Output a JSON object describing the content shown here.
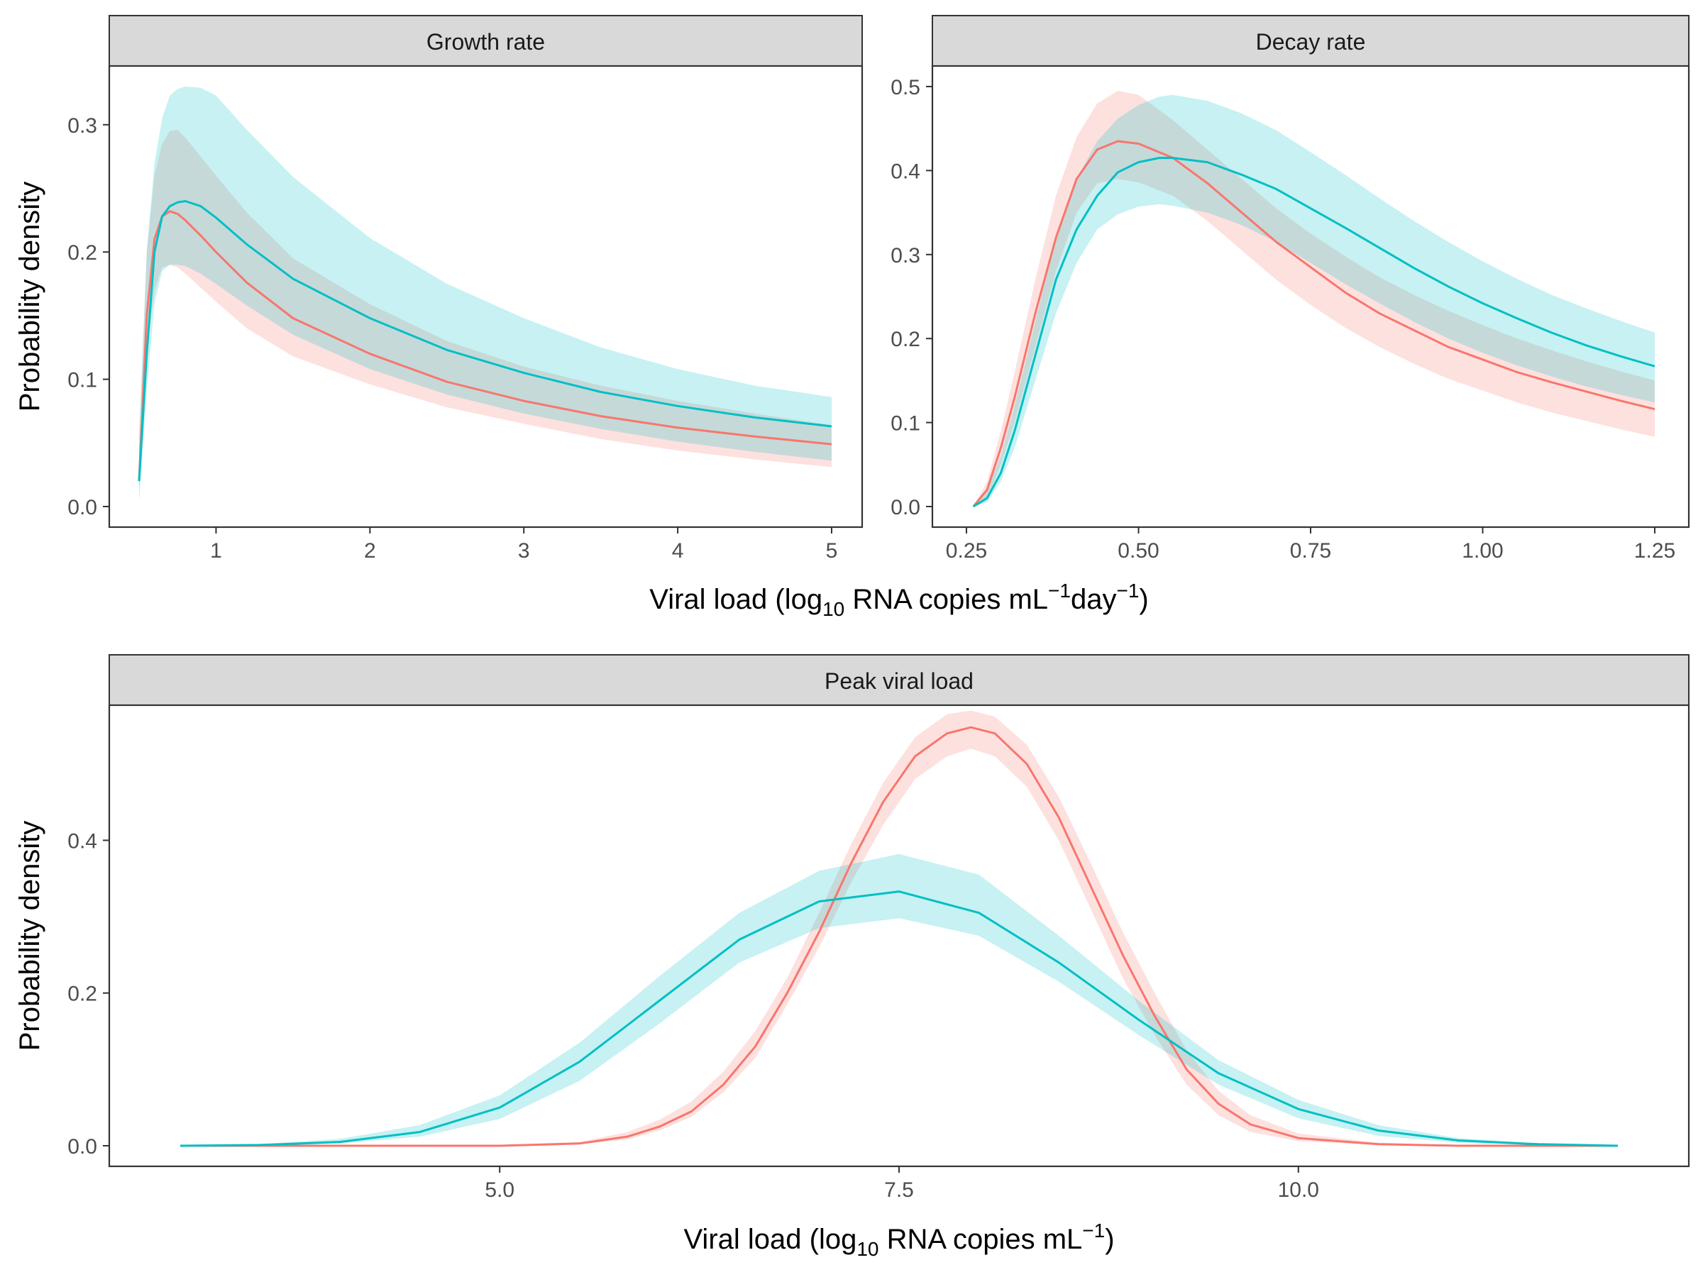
{
  "figure": {
    "top_axis_title": {
      "pre": "Viral load (log",
      "sub": "10",
      "mid": " RNA copies mL",
      "sup1": "−1",
      "mid2": "day",
      "sup2": "−1",
      "post": ")"
    },
    "bottom_axis_title": {
      "pre": "Viral load (log",
      "sub": "10",
      "mid": " RNA copies mL",
      "sup1": "−1",
      "post": ")"
    },
    "ylabel": "Probability density"
  },
  "colors": {
    "series_red": "#F8766D",
    "series_teal": "#00BFC4",
    "strip_background": "#D9D9D9",
    "panel_border": "#333333"
  },
  "chart_data": [
    {
      "type": "area",
      "title": "Growth rate",
      "ylabel": "Probability density",
      "xlim": [
        0.5,
        5.0
      ],
      "ylim": [
        0.0,
        0.33
      ],
      "xticks": [
        1,
        2,
        3,
        4,
        5
      ],
      "xtick_labels": [
        "1",
        "2",
        "3",
        "4",
        "5"
      ],
      "yticks": [
        0.0,
        0.1,
        0.2,
        0.3
      ],
      "ytick_labels": [
        "0.0",
        "0.1",
        "0.2",
        "0.3"
      ],
      "grid": false,
      "series": [
        {
          "color": "#F8766D",
          "x": [
            0.5,
            0.55,
            0.6,
            0.65,
            0.7,
            0.75,
            0.8,
            0.9,
            1.0,
            1.2,
            1.5,
            2.0,
            2.5,
            3.0,
            3.5,
            4.0,
            4.5,
            5.0
          ],
          "y": [
            0.02,
            0.15,
            0.21,
            0.228,
            0.232,
            0.23,
            0.225,
            0.213,
            0.2,
            0.176,
            0.148,
            0.12,
            0.098,
            0.083,
            0.071,
            0.062,
            0.055,
            0.049
          ],
          "lower": [
            0.01,
            0.12,
            0.17,
            0.188,
            0.19,
            0.188,
            0.183,
            0.172,
            0.161,
            0.14,
            0.118,
            0.096,
            0.078,
            0.065,
            0.053,
            0.044,
            0.037,
            0.031
          ],
          "upper": [
            0.04,
            0.2,
            0.26,
            0.285,
            0.295,
            0.296,
            0.29,
            0.275,
            0.26,
            0.231,
            0.195,
            0.159,
            0.13,
            0.11,
            0.095,
            0.083,
            0.073,
            0.064
          ]
        },
        {
          "color": "#00BFC4",
          "x": [
            0.5,
            0.55,
            0.6,
            0.65,
            0.7,
            0.75,
            0.8,
            0.9,
            1.0,
            1.2,
            1.5,
            2.0,
            2.5,
            3.0,
            3.5,
            4.0,
            4.5,
            5.0
          ],
          "y": [
            0.02,
            0.12,
            0.2,
            0.228,
            0.236,
            0.239,
            0.24,
            0.236,
            0.227,
            0.206,
            0.179,
            0.148,
            0.123,
            0.105,
            0.09,
            0.079,
            0.07,
            0.063
          ],
          "lower": [
            0.004,
            0.09,
            0.16,
            0.185,
            0.19,
            0.19,
            0.189,
            0.183,
            0.175,
            0.158,
            0.135,
            0.108,
            0.088,
            0.073,
            0.061,
            0.051,
            0.043,
            0.036
          ],
          "upper": [
            0.06,
            0.2,
            0.27,
            0.305,
            0.323,
            0.328,
            0.33,
            0.329,
            0.323,
            0.296,
            0.259,
            0.211,
            0.175,
            0.148,
            0.125,
            0.108,
            0.095,
            0.086
          ]
        }
      ]
    },
    {
      "type": "area",
      "title": "Decay rate",
      "ylabel": "Probability density",
      "xlim": [
        0.25,
        1.25
      ],
      "ylim": [
        0.0,
        0.5
      ],
      "xticks": [
        0.25,
        0.5,
        0.75,
        1.0,
        1.25
      ],
      "xtick_labels": [
        "0.25",
        "0.50",
        "0.75",
        "1.00",
        "1.25"
      ],
      "yticks": [
        0.0,
        0.1,
        0.2,
        0.3,
        0.4,
        0.5
      ],
      "ytick_labels": [
        "0.0",
        "0.1",
        "0.2",
        "0.3",
        "0.4",
        "0.5"
      ],
      "grid": false,
      "series": [
        {
          "color": "#F8766D",
          "x": [
            0.26,
            0.28,
            0.3,
            0.32,
            0.35,
            0.38,
            0.41,
            0.44,
            0.47,
            0.5,
            0.55,
            0.6,
            0.65,
            0.7,
            0.75,
            0.8,
            0.85,
            0.9,
            0.95,
            1.0,
            1.05,
            1.1,
            1.15,
            1.2,
            1.25
          ],
          "y": [
            0.0,
            0.02,
            0.07,
            0.13,
            0.23,
            0.32,
            0.39,
            0.425,
            0.435,
            0.432,
            0.415,
            0.385,
            0.35,
            0.315,
            0.285,
            0.255,
            0.23,
            0.21,
            0.19,
            0.175,
            0.16,
            0.148,
            0.137,
            0.126,
            0.116
          ],
          "lower": [
            0.0,
            0.01,
            0.05,
            0.1,
            0.19,
            0.28,
            0.35,
            0.385,
            0.39,
            0.386,
            0.37,
            0.34,
            0.305,
            0.27,
            0.24,
            0.213,
            0.19,
            0.17,
            0.152,
            0.138,
            0.124,
            0.112,
            0.102,
            0.092,
            0.083
          ],
          "upper": [
            0.0,
            0.03,
            0.09,
            0.16,
            0.27,
            0.37,
            0.44,
            0.48,
            0.495,
            0.49,
            0.46,
            0.425,
            0.39,
            0.355,
            0.325,
            0.298,
            0.273,
            0.252,
            0.233,
            0.216,
            0.2,
            0.186,
            0.173,
            0.161,
            0.15
          ]
        },
        {
          "color": "#00BFC4",
          "x": [
            0.26,
            0.28,
            0.3,
            0.32,
            0.35,
            0.38,
            0.41,
            0.44,
            0.47,
            0.5,
            0.53,
            0.55,
            0.6,
            0.65,
            0.7,
            0.75,
            0.8,
            0.85,
            0.9,
            0.95,
            1.0,
            1.05,
            1.1,
            1.15,
            1.2,
            1.25
          ],
          "y": [
            0.0,
            0.01,
            0.04,
            0.09,
            0.18,
            0.27,
            0.33,
            0.37,
            0.398,
            0.41,
            0.415,
            0.415,
            0.41,
            0.395,
            0.378,
            0.355,
            0.332,
            0.308,
            0.284,
            0.262,
            0.242,
            0.224,
            0.207,
            0.192,
            0.179,
            0.167
          ],
          "lower": [
            0.0,
            0.005,
            0.03,
            0.07,
            0.15,
            0.23,
            0.29,
            0.33,
            0.348,
            0.357,
            0.36,
            0.358,
            0.35,
            0.335,
            0.315,
            0.29,
            0.265,
            0.242,
            0.22,
            0.2,
            0.183,
            0.168,
            0.155,
            0.143,
            0.133,
            0.124
          ],
          "upper": [
            0.0,
            0.02,
            0.06,
            0.12,
            0.22,
            0.32,
            0.39,
            0.435,
            0.462,
            0.478,
            0.488,
            0.49,
            0.483,
            0.468,
            0.448,
            0.422,
            0.395,
            0.367,
            0.34,
            0.315,
            0.292,
            0.271,
            0.252,
            0.236,
            0.221,
            0.207
          ]
        }
      ]
    },
    {
      "type": "area",
      "title": "Peak viral load",
      "ylabel": "Probability density",
      "xlim": [
        3.0,
        12.0
      ],
      "ylim": [
        0.0,
        0.55
      ],
      "xticks": [
        5.0,
        7.5,
        10.0
      ],
      "xtick_labels": [
        "5.0",
        "7.5",
        "10.0"
      ],
      "yticks": [
        0.0,
        0.2,
        0.4
      ],
      "ytick_labels": [
        "0.0",
        "0.2",
        "0.4"
      ],
      "grid": false,
      "series": [
        {
          "color": "#F8766D",
          "x": [
            3.0,
            4.0,
            5.0,
            5.5,
            5.8,
            6.0,
            6.2,
            6.4,
            6.6,
            6.8,
            7.0,
            7.2,
            7.4,
            7.6,
            7.8,
            7.95,
            8.1,
            8.3,
            8.5,
            8.7,
            8.9,
            9.1,
            9.3,
            9.5,
            9.7,
            10.0,
            10.5,
            11.0,
            12.0
          ],
          "y": [
            0.0,
            0.0,
            0.0,
            0.003,
            0.012,
            0.025,
            0.045,
            0.08,
            0.13,
            0.2,
            0.28,
            0.37,
            0.45,
            0.51,
            0.54,
            0.548,
            0.54,
            0.5,
            0.43,
            0.34,
            0.25,
            0.17,
            0.1,
            0.055,
            0.028,
            0.01,
            0.002,
            0.0,
            0.0
          ],
          "lower": [
            0.0,
            0.0,
            0.0,
            0.002,
            0.008,
            0.02,
            0.038,
            0.07,
            0.115,
            0.185,
            0.26,
            0.345,
            0.42,
            0.48,
            0.51,
            0.52,
            0.51,
            0.47,
            0.4,
            0.31,
            0.22,
            0.145,
            0.08,
            0.04,
            0.018,
            0.006,
            0.001,
            0.0,
            0.0
          ],
          "upper": [
            0.0,
            0.0,
            0.001,
            0.005,
            0.018,
            0.034,
            0.058,
            0.097,
            0.15,
            0.22,
            0.305,
            0.395,
            0.475,
            0.535,
            0.565,
            0.57,
            0.562,
            0.525,
            0.457,
            0.37,
            0.28,
            0.2,
            0.125,
            0.072,
            0.04,
            0.016,
            0.004,
            0.001,
            0.0
          ]
        },
        {
          "color": "#00BFC4",
          "x": [
            3.0,
            3.5,
            4.0,
            4.5,
            5.0,
            5.5,
            6.0,
            6.5,
            7.0,
            7.5,
            8.0,
            8.5,
            9.0,
            9.5,
            10.0,
            10.5,
            11.0,
            11.5,
            12.0
          ],
          "y": [
            0.0,
            0.001,
            0.005,
            0.018,
            0.05,
            0.11,
            0.19,
            0.27,
            0.32,
            0.333,
            0.305,
            0.24,
            0.165,
            0.095,
            0.048,
            0.02,
            0.007,
            0.002,
            0.0
          ],
          "lower": [
            0.0,
            0.0,
            0.003,
            0.012,
            0.035,
            0.085,
            0.16,
            0.24,
            0.285,
            0.298,
            0.275,
            0.215,
            0.145,
            0.08,
            0.036,
            0.013,
            0.004,
            0.001,
            0.0
          ],
          "upper": [
            0.0,
            0.002,
            0.009,
            0.027,
            0.066,
            0.135,
            0.222,
            0.305,
            0.36,
            0.382,
            0.355,
            0.275,
            0.19,
            0.112,
            0.06,
            0.027,
            0.01,
            0.003,
            0.0
          ]
        }
      ]
    }
  ]
}
